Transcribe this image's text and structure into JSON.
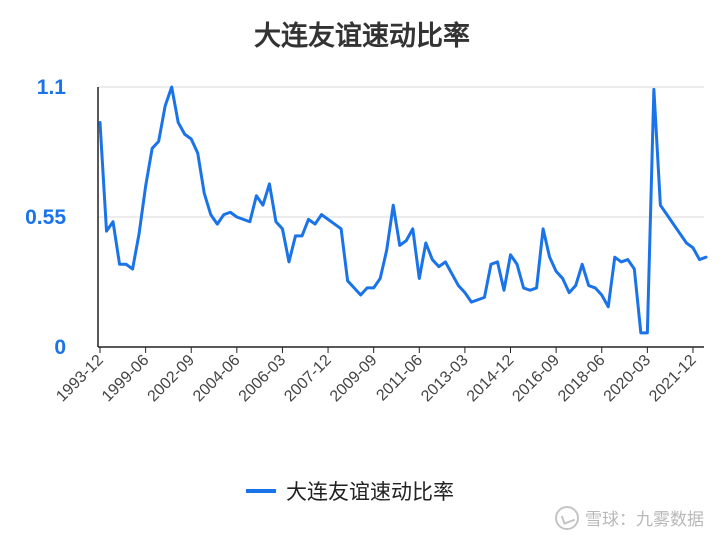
{
  "chart_data": {
    "type": "line",
    "title": "大连友谊速动比率",
    "xlabel": "",
    "ylabel": "",
    "ylim": [
      0,
      1.1
    ],
    "yticks": [
      "0",
      "0.55",
      "1.1"
    ],
    "ytick_values": [
      0,
      0.55,
      1.1
    ],
    "grid": true,
    "legend_position": "bottom",
    "line_color": "#1a73e8",
    "x_tick_labels": [
      "1993-12",
      "1999-06",
      "2002-09",
      "2004-06",
      "2006-03",
      "2007-12",
      "2009-09",
      "2011-06",
      "2013-03",
      "2014-12",
      "2016-09",
      "2018-06",
      "2020-03",
      "2021-12"
    ],
    "x_tick_indices": [
      0,
      7,
      14,
      21,
      28,
      35,
      42,
      49,
      56,
      63,
      70,
      77,
      84,
      91
    ],
    "series": [
      {
        "name": "大连友谊速动比率",
        "values": [
          0.95,
          0.49,
          0.53,
          0.35,
          0.35,
          0.33,
          0.48,
          0.68,
          0.84,
          0.87,
          1.02,
          1.1,
          0.95,
          0.9,
          0.88,
          0.82,
          0.65,
          0.56,
          0.52,
          0.56,
          0.57,
          0.55,
          0.54,
          0.53,
          0.64,
          0.6,
          0.69,
          0.53,
          0.5,
          0.36,
          0.47,
          0.47,
          0.54,
          0.52,
          0.56,
          0.54,
          0.52,
          0.5,
          0.28,
          0.25,
          0.22,
          0.25,
          0.25,
          0.29,
          0.41,
          0.6,
          0.43,
          0.45,
          0.5,
          0.29,
          0.44,
          0.37,
          0.34,
          0.36,
          0.31,
          0.26,
          0.23,
          0.19,
          0.2,
          0.21,
          0.35,
          0.36,
          0.24,
          0.39,
          0.35,
          0.25,
          0.24,
          0.25,
          0.5,
          0.38,
          0.32,
          0.29,
          0.23,
          0.26,
          0.35,
          0.26,
          0.25,
          0.22,
          0.17,
          0.38,
          0.36,
          0.37,
          0.33,
          0.06,
          0.06,
          1.09,
          0.6,
          0.56,
          0.52,
          0.48,
          0.44,
          0.42,
          0.37,
          0.38
        ]
      }
    ]
  },
  "legend": {
    "label": "大连友谊速动比率"
  },
  "watermark": {
    "text": "雪球：九雾数据"
  }
}
